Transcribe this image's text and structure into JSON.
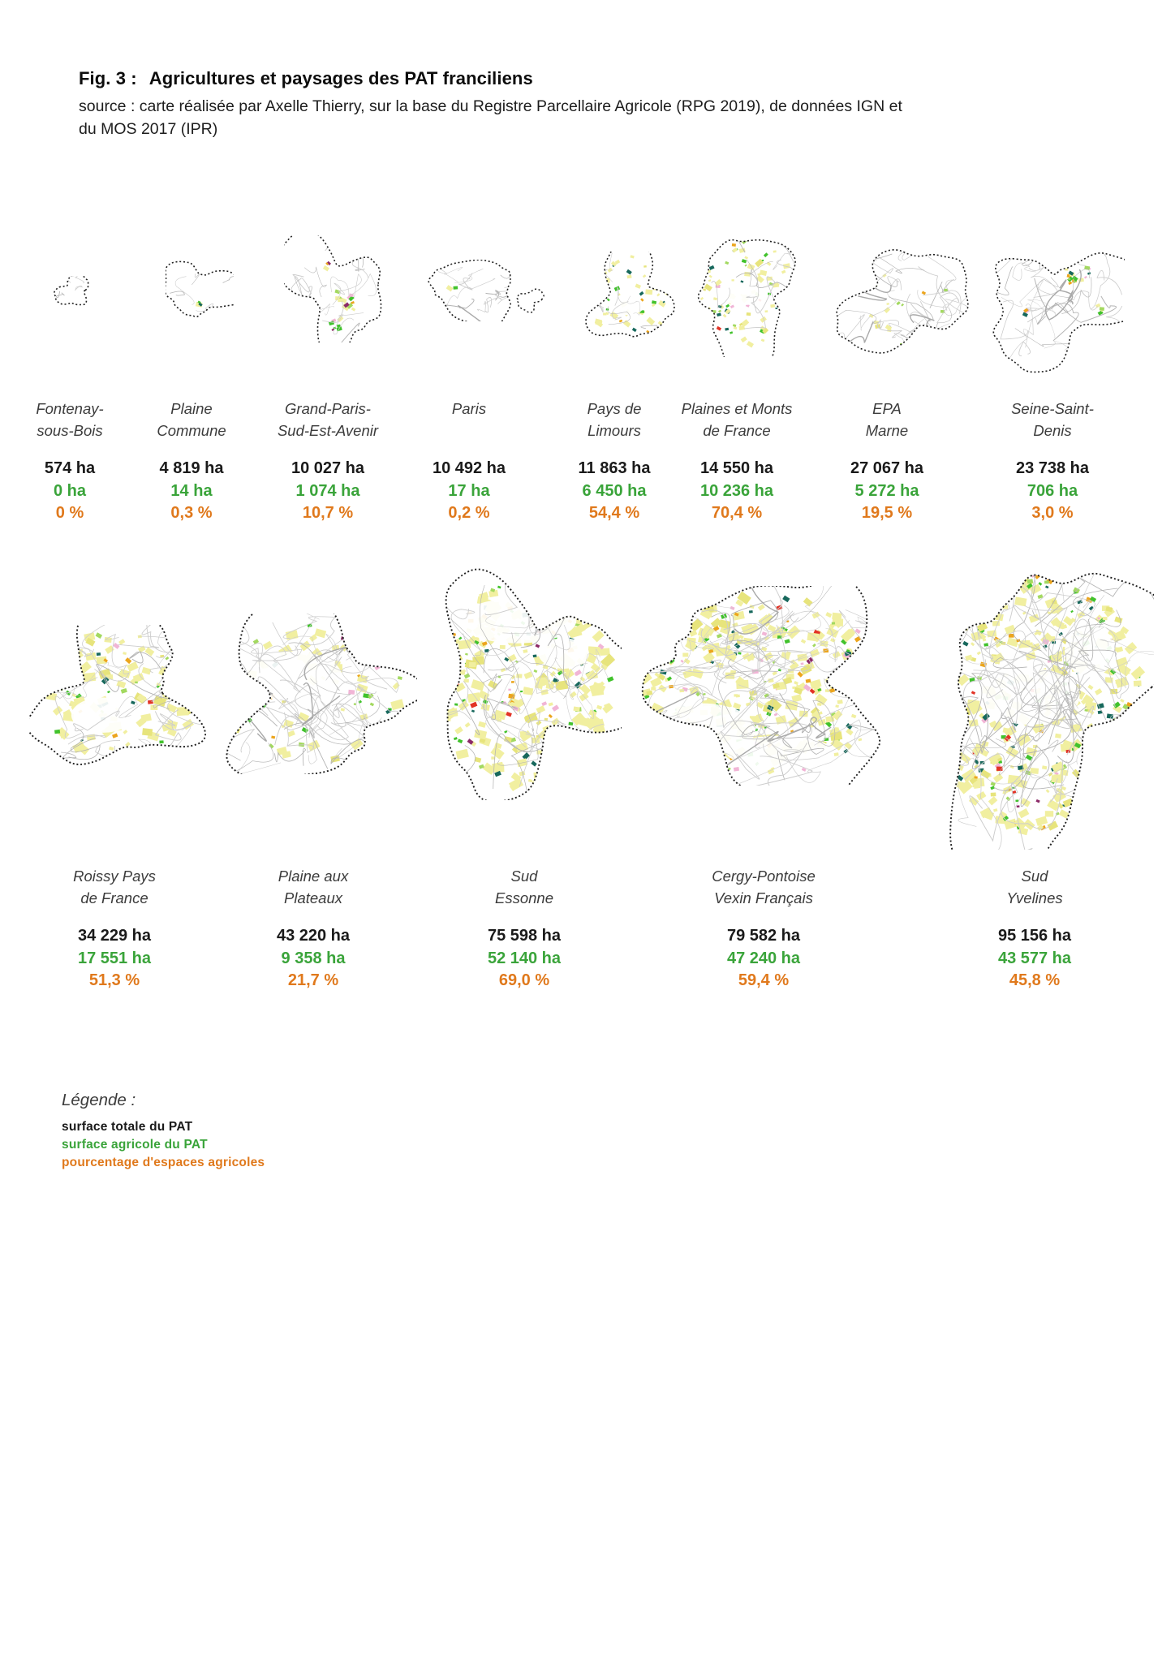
{
  "figure": {
    "title_prefix": "Fig. 3 :",
    "title": "Agricultures et paysages des PAT franciliens",
    "source_line1": "source : carte réalisée par Axelle Thierry, sur la base du Registre Parcellaire Agricole (RPG 2019), de données IGN et",
    "source_line2": "du MOS 2017 (IPR)"
  },
  "colors": {
    "surface_totale": "#1a1a1a",
    "surface_agricole": "#3aa43a",
    "pourcentage": "#e0791c"
  },
  "territories_row1": [
    {
      "name_line1": "Fontenay-",
      "name_line2": "sous-Bois",
      "total_area": "574 ha",
      "agricultural_area": "0 ha",
      "agricultural_pct": "0 %"
    },
    {
      "name_line1": "Plaine",
      "name_line2": "Commune",
      "total_area": "4 819 ha",
      "agricultural_area": "14 ha",
      "agricultural_pct": "0,3 %"
    },
    {
      "name_line1": "Grand-Paris-",
      "name_line2": "Sud-Est-Avenir",
      "total_area": "10 027 ha",
      "agricultural_area": "1 074 ha",
      "agricultural_pct": "10,7 %"
    },
    {
      "name_line1": "Paris",
      "name_line2": "",
      "total_area": "10 492 ha",
      "agricultural_area": "17 ha",
      "agricultural_pct": "0,2 %"
    },
    {
      "name_line1": "Pays de",
      "name_line2": "Limours",
      "total_area": "11 863 ha",
      "agricultural_area": "6 450 ha",
      "agricultural_pct": "54,4 %"
    },
    {
      "name_line1": "Plaines et Monts",
      "name_line2": "de France",
      "total_area": "14 550 ha",
      "agricultural_area": "10 236 ha",
      "agricultural_pct": "70,4 %"
    },
    {
      "name_line1": "EPA",
      "name_line2": "Marne",
      "total_area": "27 067 ha",
      "agricultural_area": "5 272 ha",
      "agricultural_pct": "19,5 %"
    },
    {
      "name_line1": "Seine-Saint-",
      "name_line2": "Denis",
      "total_area": "23 738 ha",
      "agricultural_area": "706 ha",
      "agricultural_pct": "3,0 %"
    }
  ],
  "territories_row2": [
    {
      "name_line1": "Roissy Pays",
      "name_line2": "de France",
      "total_area": "34 229 ha",
      "agricultural_area": "17 551 ha",
      "agricultural_pct": "51,3 %"
    },
    {
      "name_line1": "Plaine aux",
      "name_line2": "Plateaux",
      "total_area": "43 220 ha",
      "agricultural_area": "9 358 ha",
      "agricultural_pct": "21,7 %"
    },
    {
      "name_line1": "Sud",
      "name_line2": "Essonne",
      "total_area": "75 598 ha",
      "agricultural_area": "52 140 ha",
      "agricultural_pct": "69,0 %"
    },
    {
      "name_line1": "Cergy-Pontoise",
      "name_line2": "Vexin Français",
      "total_area": "79 582 ha",
      "agricultural_area": "47 240 ha",
      "agricultural_pct": "59,4 %"
    },
    {
      "name_line1": "Sud",
      "name_line2": "Yvelines",
      "total_area": "95 156 ha",
      "agricultural_area": "43 577 ha",
      "agricultural_pct": "45,8 %"
    }
  ],
  "legend": {
    "heading": "Légende :",
    "items": [
      {
        "label": "surface totale du PAT",
        "color": "#1a1a1a"
      },
      {
        "label": "surface agricole du PAT",
        "color": "#3aa43a"
      },
      {
        "label": "pourcentage d'espaces agricoles",
        "color": "#e0791c"
      }
    ]
  }
}
